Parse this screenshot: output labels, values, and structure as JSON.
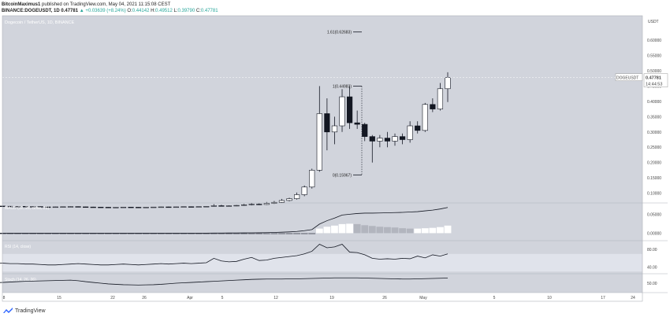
{
  "header": {
    "author": "BitcoinMaximus1",
    "published": "published on TradingView.com, May 04, 2021 11:15:08 CEST",
    "symbol": "BINANCE:DOGEUSDT, 1D",
    "price": "0.47781",
    "change": "▲ +0.03639 (+8.24%)",
    "o_label": "O:",
    "o": "0.44142",
    "h_label": "H:",
    "h": "0.49512",
    "l_label": "L:",
    "l": "0.39790",
    "c_label": "C:",
    "c": "0.47781"
  },
  "footer": {
    "brand": "TradingView"
  },
  "colors": {
    "panel_bg": "#d1d4dc",
    "border": "#b0b3ba",
    "candle_up": "#ffffff",
    "candle_down": "#131722",
    "line": "#131722",
    "hist_pos_rising": "#ffffff",
    "hist_pos_falling": "#b2b5be",
    "band": "#e0e3eb"
  },
  "chart_data": {
    "type": "candlestick",
    "title": "Dogecoin / TetherUS, 1D, BINANCE",
    "currency": "USDT",
    "price_axis": {
      "ticks": [
        "0.60000",
        "0.55000",
        "0.50000",
        "0.45000",
        "0.40000",
        "0.35000",
        "0.30000",
        "0.25000",
        "0.20000",
        "0.15000",
        "0.10000"
      ],
      "range": [
        0.068,
        0.68
      ]
    },
    "last_price": {
      "symbol": "DOGEUSDT",
      "value": "0.47781",
      "countdown": "14:44:53"
    },
    "fibonacci": [
      {
        "label": "1.61(0.62683)",
        "value": 0.62683
      },
      {
        "label": "1(0.44983)",
        "value": 0.44983
      },
      {
        "label": "0(0.15967)",
        "value": 0.15967
      }
    ],
    "x_labels": [
      "8",
      "15",
      "22",
      "26",
      "Apr",
      "5",
      "12",
      "19",
      "26",
      "May",
      "5",
      "10",
      "17",
      "24",
      "28"
    ],
    "candles": [
      {
        "o": 0.0583,
        "h": 0.0592,
        "l": 0.0566,
        "c": 0.0579
      },
      {
        "o": 0.0579,
        "h": 0.0585,
        "l": 0.056,
        "c": 0.0572
      },
      {
        "o": 0.0572,
        "h": 0.058,
        "l": 0.0556,
        "c": 0.0565
      },
      {
        "o": 0.0565,
        "h": 0.0578,
        "l": 0.0552,
        "c": 0.0569
      },
      {
        "o": 0.0569,
        "h": 0.0575,
        "l": 0.055,
        "c": 0.0558
      },
      {
        "o": 0.0558,
        "h": 0.057,
        "l": 0.0548,
        "c": 0.0562
      },
      {
        "o": 0.0562,
        "h": 0.057,
        "l": 0.0545,
        "c": 0.0551
      },
      {
        "o": 0.0551,
        "h": 0.0561,
        "l": 0.054,
        "c": 0.0548
      },
      {
        "o": 0.0548,
        "h": 0.0558,
        "l": 0.0538,
        "c": 0.0552
      },
      {
        "o": 0.0552,
        "h": 0.0561,
        "l": 0.0544,
        "c": 0.0556
      },
      {
        "o": 0.0556,
        "h": 0.0568,
        "l": 0.0548,
        "c": 0.0561
      },
      {
        "o": 0.0561,
        "h": 0.0566,
        "l": 0.0546,
        "c": 0.0553
      },
      {
        "o": 0.0553,
        "h": 0.0559,
        "l": 0.0541,
        "c": 0.0547
      },
      {
        "o": 0.0547,
        "h": 0.0555,
        "l": 0.0536,
        "c": 0.0544
      },
      {
        "o": 0.0544,
        "h": 0.0551,
        "l": 0.0534,
        "c": 0.054
      },
      {
        "o": 0.054,
        "h": 0.0547,
        "l": 0.053,
        "c": 0.0535
      },
      {
        "o": 0.0535,
        "h": 0.0544,
        "l": 0.0527,
        "c": 0.0539
      },
      {
        "o": 0.0539,
        "h": 0.0548,
        "l": 0.0531,
        "c": 0.0544
      },
      {
        "o": 0.0544,
        "h": 0.0552,
        "l": 0.0535,
        "c": 0.054
      },
      {
        "o": 0.054,
        "h": 0.0547,
        "l": 0.0532,
        "c": 0.0537
      },
      {
        "o": 0.0537,
        "h": 0.0545,
        "l": 0.0529,
        "c": 0.0541
      },
      {
        "o": 0.0541,
        "h": 0.0549,
        "l": 0.0533,
        "c": 0.0546
      },
      {
        "o": 0.0546,
        "h": 0.0556,
        "l": 0.0539,
        "c": 0.0551
      },
      {
        "o": 0.0551,
        "h": 0.056,
        "l": 0.0543,
        "c": 0.0548
      },
      {
        "o": 0.0548,
        "h": 0.0555,
        "l": 0.0541,
        "c": 0.0552
      },
      {
        "o": 0.0552,
        "h": 0.0561,
        "l": 0.0545,
        "c": 0.0558
      },
      {
        "o": 0.0558,
        "h": 0.0566,
        "l": 0.0549,
        "c": 0.0555
      },
      {
        "o": 0.0555,
        "h": 0.0562,
        "l": 0.0547,
        "c": 0.056
      },
      {
        "o": 0.056,
        "h": 0.0572,
        "l": 0.0552,
        "c": 0.0568
      },
      {
        "o": 0.0568,
        "h": 0.064,
        "l": 0.056,
        "c": 0.059
      },
      {
        "o": 0.059,
        "h": 0.0618,
        "l": 0.057,
        "c": 0.058
      },
      {
        "o": 0.058,
        "h": 0.0602,
        "l": 0.0565,
        "c": 0.0588
      },
      {
        "o": 0.0588,
        "h": 0.0612,
        "l": 0.0575,
        "c": 0.06
      },
      {
        "o": 0.06,
        "h": 0.065,
        "l": 0.0585,
        "c": 0.062
      },
      {
        "o": 0.062,
        "h": 0.0678,
        "l": 0.06,
        "c": 0.064
      },
      {
        "o": 0.064,
        "h": 0.0665,
        "l": 0.0612,
        "c": 0.063
      },
      {
        "o": 0.063,
        "h": 0.0712,
        "l": 0.0615,
        "c": 0.0665
      },
      {
        "o": 0.0665,
        "h": 0.0745,
        "l": 0.0648,
        "c": 0.07
      },
      {
        "o": 0.07,
        "h": 0.0812,
        "l": 0.068,
        "c": 0.076
      },
      {
        "o": 0.076,
        "h": 0.085,
        "l": 0.073,
        "c": 0.082
      },
      {
        "o": 0.082,
        "h": 0.102,
        "l": 0.079,
        "c": 0.095
      },
      {
        "o": 0.095,
        "h": 0.125,
        "l": 0.09,
        "c": 0.12
      },
      {
        "o": 0.12,
        "h": 0.18,
        "l": 0.115,
        "c": 0.175
      },
      {
        "o": 0.175,
        "h": 0.45,
        "l": 0.17,
        "c": 0.36
      },
      {
        "o": 0.36,
        "h": 0.41,
        "l": 0.24,
        "c": 0.3
      },
      {
        "o": 0.3,
        "h": 0.35,
        "l": 0.26,
        "c": 0.32
      },
      {
        "o": 0.32,
        "h": 0.44,
        "l": 0.3,
        "c": 0.415
      },
      {
        "o": 0.415,
        "h": 0.45,
        "l": 0.31,
        "c": 0.33
      },
      {
        "o": 0.33,
        "h": 0.37,
        "l": 0.31,
        "c": 0.325
      },
      {
        "o": 0.325,
        "h": 0.33,
        "l": 0.27,
        "c": 0.285
      },
      {
        "o": 0.285,
        "h": 0.29,
        "l": 0.2,
        "c": 0.27
      },
      {
        "o": 0.27,
        "h": 0.29,
        "l": 0.25,
        "c": 0.28
      },
      {
        "o": 0.28,
        "h": 0.3,
        "l": 0.25,
        "c": 0.27
      },
      {
        "o": 0.27,
        "h": 0.295,
        "l": 0.255,
        "c": 0.285
      },
      {
        "o": 0.285,
        "h": 0.295,
        "l": 0.26,
        "c": 0.275
      },
      {
        "o": 0.275,
        "h": 0.335,
        "l": 0.265,
        "c": 0.32
      },
      {
        "o": 0.32,
        "h": 0.335,
        "l": 0.295,
        "c": 0.305
      },
      {
        "o": 0.305,
        "h": 0.395,
        "l": 0.3,
        "c": 0.39
      },
      {
        "o": 0.39,
        "h": 0.41,
        "l": 0.365,
        "c": 0.375
      },
      {
        "o": 0.375,
        "h": 0.46,
        "l": 0.37,
        "c": 0.4414
      },
      {
        "o": 0.4414,
        "h": 0.4951,
        "l": 0.3979,
        "c": 0.4778
      }
    ],
    "macd": {
      "label": "MACD (12, 26, close, 26)",
      "ticks": [
        "0.05000",
        "0.00000"
      ],
      "range": [
        -0.02,
        0.08
      ],
      "line": [
        0,
        0,
        0,
        0,
        0,
        0,
        0,
        0,
        0,
        0,
        0,
        0,
        0,
        0,
        0,
        0,
        0,
        0,
        0,
        0,
        0,
        0,
        0,
        0,
        0,
        0,
        0,
        0,
        0,
        0.0003,
        0.0003,
        0.0004,
        0.0005,
        0.0007,
        0.0009,
        0.001,
        0.0013,
        0.0018,
        0.0025,
        0.0033,
        0.0045,
        0.0065,
        0.0095,
        0.024,
        0.033,
        0.04,
        0.048,
        0.05,
        0.052,
        0.053,
        0.053,
        0.0535,
        0.054,
        0.0545,
        0.055,
        0.056,
        0.057,
        0.059,
        0.061,
        0.064,
        0.068
      ],
      "hist": [
        0,
        0,
        0,
        0,
        0,
        0,
        0,
        0,
        0,
        0,
        0,
        0,
        0,
        0,
        0,
        0,
        0,
        0,
        0,
        0,
        0,
        0,
        0,
        0,
        0,
        0,
        0,
        0,
        0,
        0,
        0,
        0,
        0,
        0,
        0,
        0,
        0,
        0,
        0,
        0,
        0,
        0,
        0,
        0.012,
        0.017,
        0.02,
        0.024,
        0.025,
        0.024,
        0.021,
        0.019,
        0.017,
        0.016,
        0.015,
        0.013,
        0.012,
        0.012,
        0.013,
        0.014,
        0.016,
        0.02
      ]
    },
    "rsi": {
      "label": "RSI (14, close)",
      "ticks": [
        "80.00",
        "40.00"
      ],
      "range": [
        25,
        100
      ],
      "band": [
        30,
        70
      ],
      "values": [
        50,
        49,
        48,
        48,
        47,
        47,
        46,
        45,
        45,
        46,
        47,
        48,
        47,
        46,
        45,
        45,
        46,
        47,
        46,
        45,
        46,
        47,
        48,
        47,
        48,
        49,
        48,
        49,
        50,
        60,
        54,
        52,
        53,
        58,
        62,
        55,
        56,
        60,
        62,
        64,
        66,
        70,
        76,
        92,
        84,
        86,
        92,
        74,
        73,
        68,
        60,
        58,
        59,
        58,
        60,
        59,
        65,
        61,
        68,
        65,
        70
      ]
    },
    "stoch": {
      "label": "Stoch (14, 26, 26)",
      "ticks": [
        "50.00"
      ],
      "range": [
        0,
        100
      ],
      "values": [
        52,
        54,
        56,
        58,
        60,
        61,
        62,
        63,
        64,
        65,
        66,
        63,
        58,
        54,
        50,
        46,
        44,
        42,
        41,
        40,
        41,
        42,
        44,
        47,
        50,
        52,
        54,
        56,
        58,
        60,
        62,
        64,
        66,
        68,
        70,
        71,
        72,
        72,
        72,
        73,
        73,
        74,
        75,
        76,
        77,
        78,
        78,
        78,
        78,
        77,
        76,
        75,
        74,
        73,
        72,
        72,
        73,
        74,
        75,
        76,
        77
      ]
    }
  }
}
